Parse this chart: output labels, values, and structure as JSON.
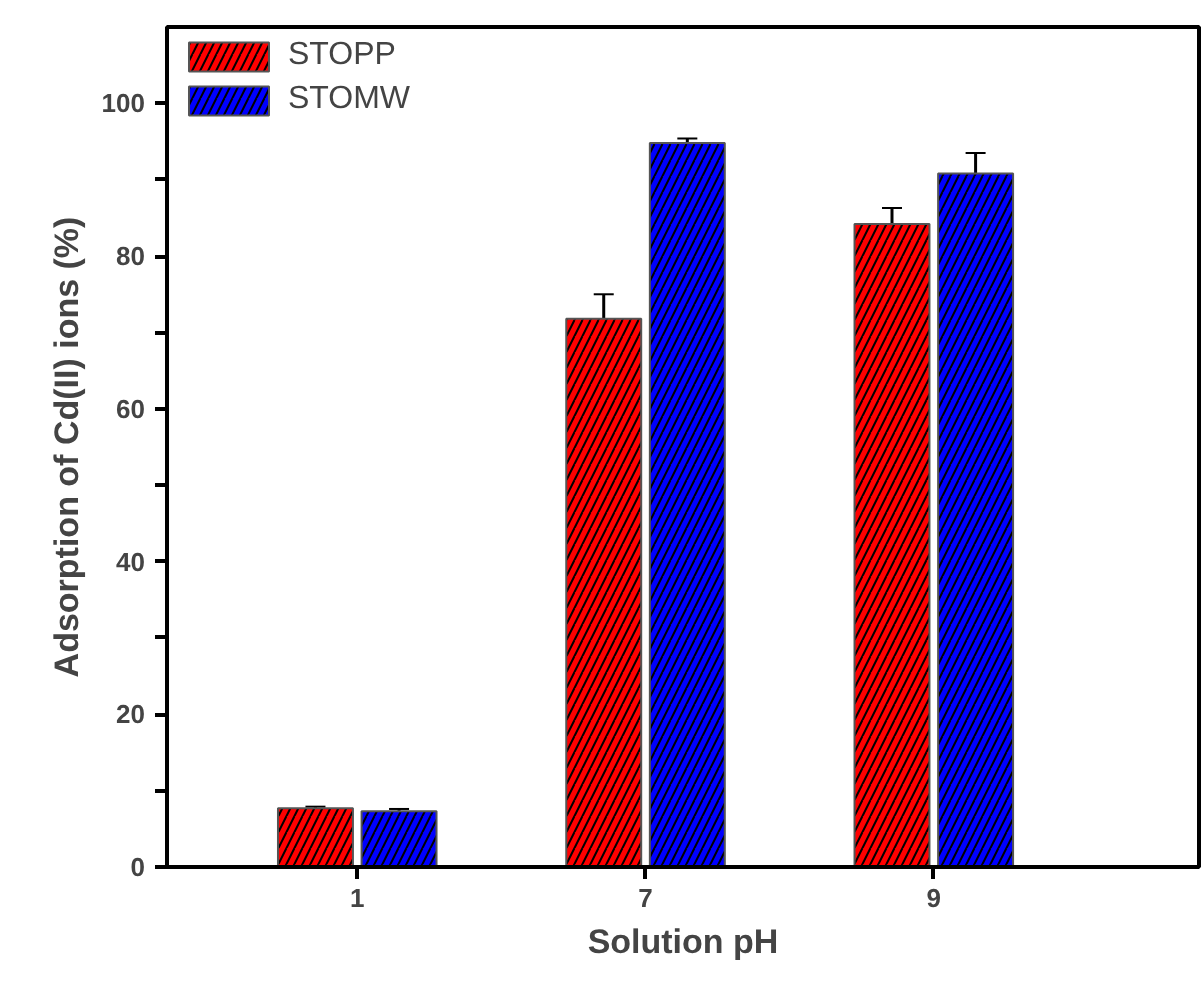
{
  "chart_data": {
    "type": "bar",
    "xlabel": "Solution pH",
    "ylabel": "Adsorption of Cd(II) ions (%)",
    "categories": [
      "1",
      "7",
      "9"
    ],
    "series": [
      {
        "name": "STOPP",
        "color": "#ff0000",
        "values": [
          7.7,
          71.8,
          84.2
        ],
        "errors": [
          0.2,
          3.2,
          2.1
        ]
      },
      {
        "name": "STOMW",
        "color": "#0000ff",
        "values": [
          7.3,
          94.8,
          90.8
        ],
        "errors": [
          0.3,
          0.6,
          2.7
        ]
      }
    ],
    "ylim": [
      0,
      110
    ],
    "yticks": [
      0,
      {
        "value": 10,
        "label": null
      },
      20,
      {
        "value": 30,
        "label": null
      },
      40,
      {
        "value": 50,
        "label": null
      },
      60,
      {
        "value": 70,
        "label": null
      },
      80,
      {
        "value": 90,
        "label": null
      },
      100
    ],
    "legend": "top left",
    "grid": false
  }
}
